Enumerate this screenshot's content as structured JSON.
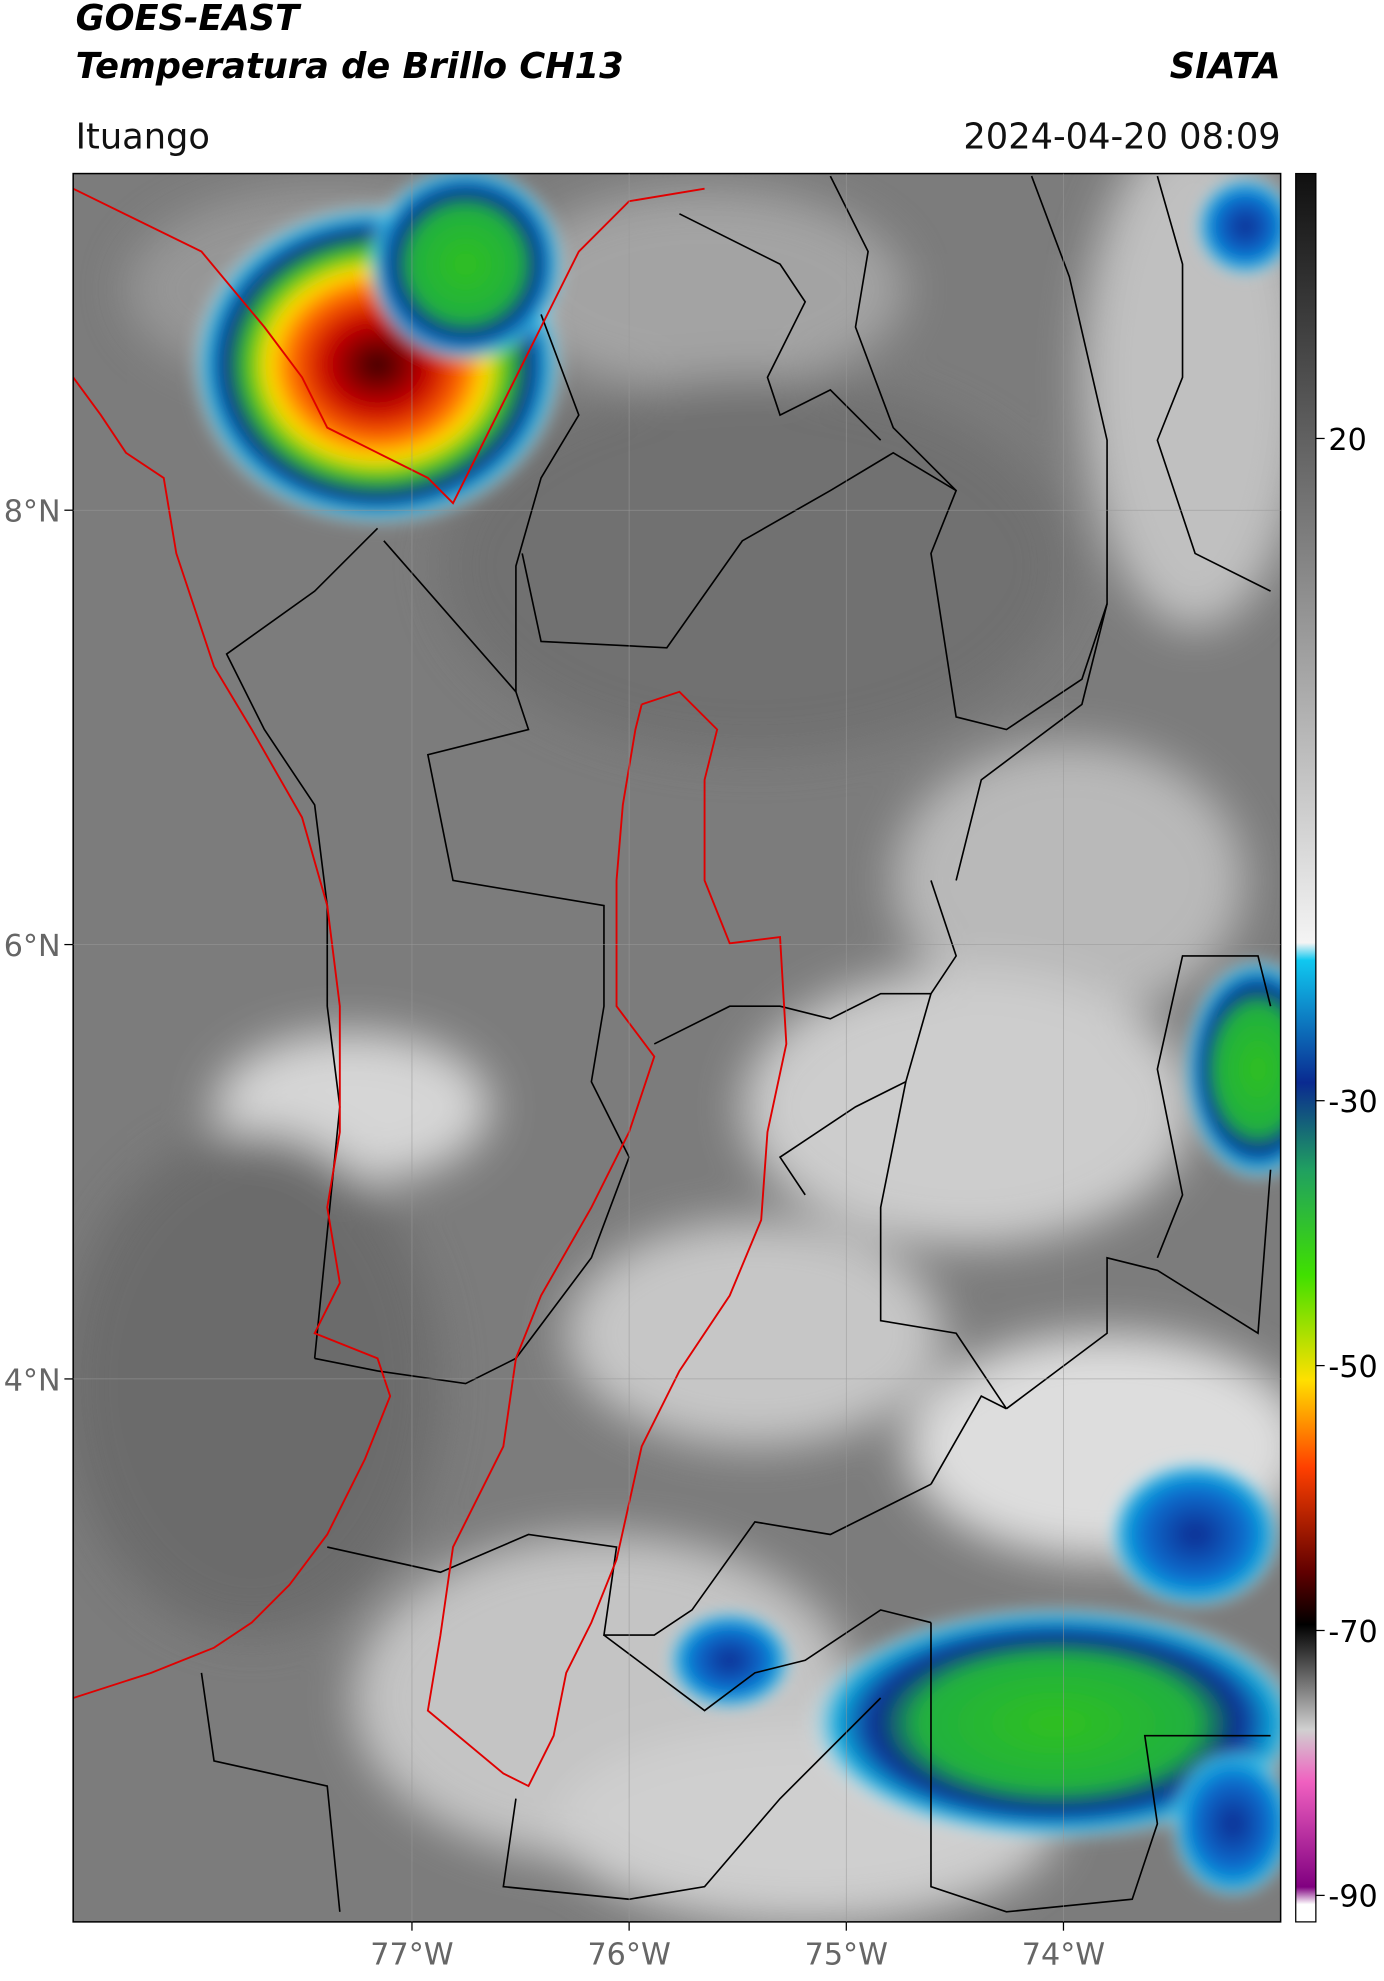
{
  "header": {
    "title": "GOES-EAST",
    "subtitle": "Temperatura de Brillo CH13",
    "source": "SIATA",
    "location": "Ituango",
    "datetime": "2024-04-20 08:09"
  },
  "map": {
    "xlim": [
      -78.56,
      -73.0
    ],
    "ylim": [
      1.5,
      9.55
    ],
    "xticks": [
      {
        "value": -77,
        "label": "77°W"
      },
      {
        "value": -76,
        "label": "76°W"
      },
      {
        "value": -75,
        "label": "75°W"
      },
      {
        "value": -74,
        "label": "74°W"
      }
    ],
    "yticks": [
      {
        "value": 8,
        "label": "8°N"
      },
      {
        "value": 6,
        "label": "6°N"
      },
      {
        "value": 4,
        "label": "4°N"
      }
    ],
    "grid": true
  },
  "colorbar": {
    "lim": [
      -92,
      40
    ],
    "ticks": [
      20,
      -30,
      -50,
      -70,
      -90
    ]
  }
}
